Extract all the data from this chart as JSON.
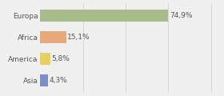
{
  "categories": [
    "Europa",
    "Africa",
    "America",
    "Asia"
  ],
  "values": [
    74.9,
    15.1,
    5.8,
    4.3
  ],
  "labels": [
    "74,9%",
    "15,1%",
    "5,8%",
    "4,3%"
  ],
  "bar_colors": [
    "#a8bb8a",
    "#e8a97a",
    "#e8d060",
    "#7b8ec8"
  ],
  "background_color": "#f0f0f0",
  "xlim": [
    0,
    105
  ],
  "label_fontsize": 6.5,
  "tick_fontsize": 6.5,
  "grid_lines": [
    25,
    50,
    75,
    100
  ]
}
